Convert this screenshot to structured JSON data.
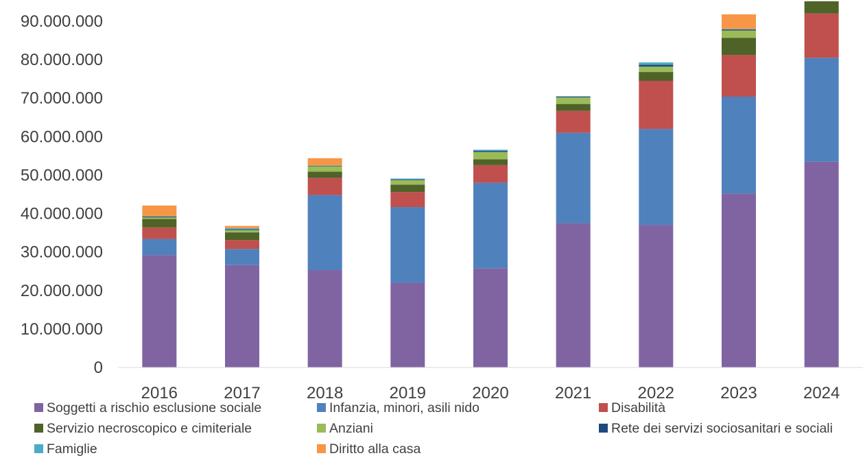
{
  "chart_data": {
    "type": "bar",
    "stacked": true,
    "categories": [
      "2016",
      "2017",
      "2018",
      "2019",
      "2020",
      "2021",
      "2022",
      "2023",
      "2024"
    ],
    "ylim": [
      0,
      95000000
    ],
    "yticks": [
      0,
      10000000,
      20000000,
      30000000,
      40000000,
      50000000,
      60000000,
      70000000,
      80000000,
      90000000
    ],
    "ytick_labels": [
      "0",
      "10.000.000",
      "20.000.000",
      "30.000.000",
      "40.000.000",
      "50.000.000",
      "60.000.000",
      "70.000.000",
      "80.000.000",
      "90.000.000"
    ],
    "grid": false,
    "legend_position": "bottom",
    "series": [
      {
        "name": "Soggetti a rischio esclusione sociale",
        "color": "#8064A2",
        "values": [
          29200000,
          26600000,
          25300000,
          22000000,
          25800000,
          37500000,
          37000000,
          45200000,
          53500000
        ]
      },
      {
        "name": "Infanzia, minori, asili nido",
        "color": "#4F81BD",
        "values": [
          4200000,
          4200000,
          19500000,
          19700000,
          22200000,
          23500000,
          25000000,
          25200000,
          27000000
        ]
      },
      {
        "name": "Disabilità",
        "color": "#C0504D",
        "values": [
          3000000,
          2300000,
          4500000,
          3900000,
          4600000,
          5700000,
          12500000,
          10800000,
          11500000
        ]
      },
      {
        "name": "Servizio necroscopico e cimiteriale",
        "color": "#4F6228",
        "values": [
          2200000,
          2000000,
          1600000,
          1900000,
          1500000,
          1800000,
          2300000,
          4500000,
          3200000
        ]
      },
      {
        "name": "Anziani",
        "color": "#9BBB59",
        "values": [
          400000,
          600000,
          1400000,
          1200000,
          1900000,
          1700000,
          1400000,
          1900000,
          0
        ]
      },
      {
        "name": "Rete dei servizi sociosanitari e sociali",
        "color": "#1F497D",
        "values": [
          200000,
          200000,
          100000,
          200000,
          300000,
          200000,
          500000,
          300000,
          0
        ]
      },
      {
        "name": "Famiglie",
        "color": "#4BACC6",
        "values": [
          100000,
          300000,
          100000,
          200000,
          300000,
          100000,
          600000,
          100000,
          0
        ]
      },
      {
        "name": "Diritto alla casa",
        "color": "#F79646",
        "values": [
          2800000,
          600000,
          1900000,
          0,
          0,
          0,
          0,
          3800000,
          0
        ]
      }
    ]
  }
}
